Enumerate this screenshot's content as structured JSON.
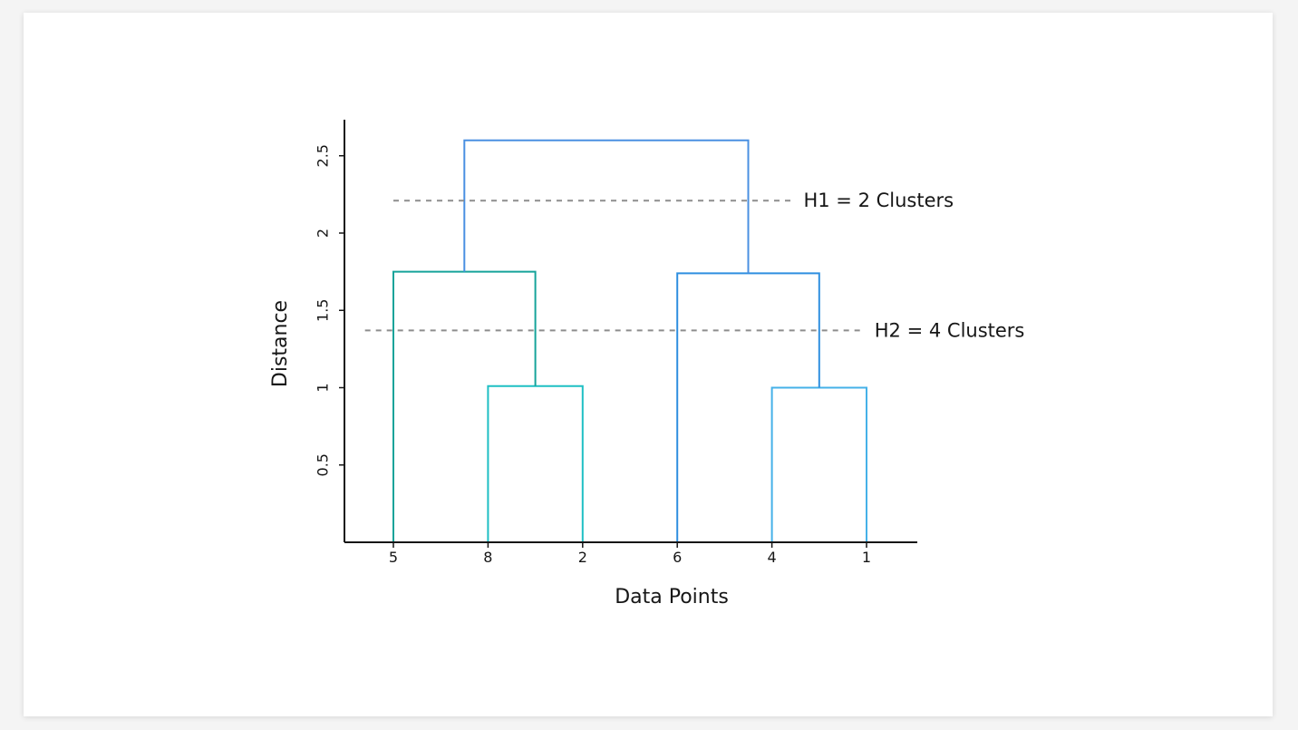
{
  "chart_data": {
    "type": "dendrogram",
    "xlabel": "Data Points",
    "ylabel": "Distance",
    "ylim": [
      0,
      2.75
    ],
    "y_ticks": [
      {
        "value": 0.5,
        "label": "0.5"
      },
      {
        "value": 1,
        "label": "1"
      },
      {
        "value": 1.5,
        "label": "1.5"
      },
      {
        "value": 2,
        "label": "2"
      },
      {
        "value": 2.5,
        "label": "2.5"
      }
    ],
    "leaves": [
      "5",
      "8",
      "2",
      "6",
      "4",
      "1"
    ],
    "merges": [
      {
        "left": "leaf:1",
        "right": "leaf:2",
        "height": 1.01,
        "color": "#1fbfc4"
      },
      {
        "left": "leaf:4",
        "right": "leaf:5",
        "height": 1.0,
        "color": "#45b1e8"
      },
      {
        "left": "leaf:0",
        "right": "merge:0",
        "height": 1.75,
        "color": "#16a39a"
      },
      {
        "left": "leaf:3",
        "right": "merge:1",
        "height": 1.74,
        "color": "#2f8fe0"
      },
      {
        "left": "merge:2",
        "right": "merge:3",
        "height": 2.6,
        "color": "#4a90e2"
      }
    ],
    "cut_lines": [
      {
        "height": 2.21,
        "label": "H1 = 2 Clusters",
        "x_start": 0.0,
        "x_end": 4.2
      },
      {
        "height": 1.37,
        "label": "H2 = 4 Clusters",
        "x_start": -0.3,
        "x_end": 4.95
      }
    ],
    "colors": {
      "axis": "#161616",
      "cut_line": "#8d8d8d"
    }
  }
}
